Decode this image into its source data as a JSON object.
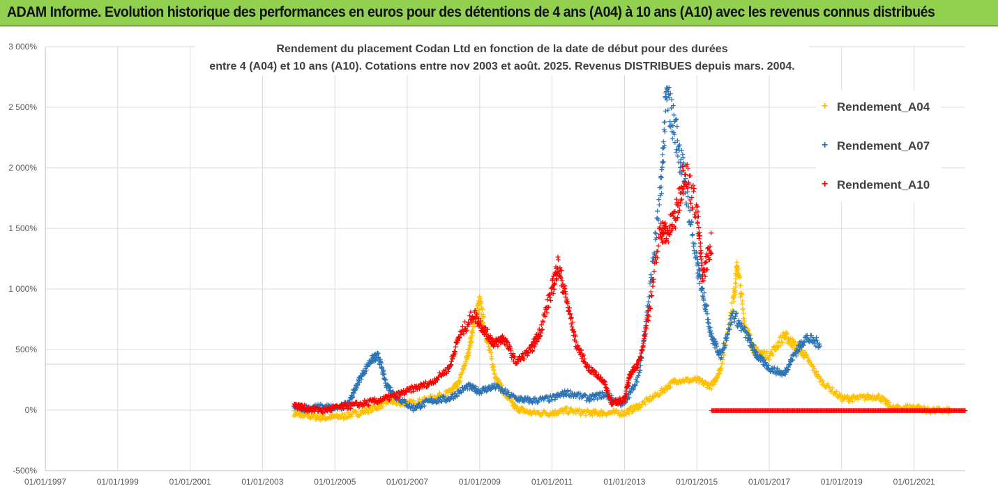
{
  "banner": {
    "title": "ADAM Informe. Evolution historique des performances en euros pour des détentions de 4 ans (A04) à 10 ans (A10) avec les revenus connus distribués"
  },
  "colors": {
    "banner_bg": "#92d050",
    "A04": "#ffc000",
    "A07": "#2e75b6",
    "A10": "#ff0000",
    "grid": "#d9d9d9"
  },
  "chart_data": {
    "type": "scatter",
    "title_line1": "Rendement du placement Codan Ltd en fonction de la date de début pour des durées",
    "title_line2": "entre 4 (A04) et 10 ans (A10). Cotations entre nov 2003 et août. 2025. Revenus DISTRIBUES depuis mars. 2004.",
    "xlabel": "",
    "ylabel": "",
    "x_range": [
      "1997-01-01",
      "2022-06-01"
    ],
    "ylim": [
      -500,
      3000
    ],
    "y_ticks": [
      -500,
      0,
      500,
      1000,
      1500,
      2000,
      2500,
      3000
    ],
    "y_tick_labels": [
      "-500%",
      "0%",
      "500%",
      "1 000%",
      "1 500%",
      "2 000%",
      "2 500%",
      "3 000%"
    ],
    "x_ticks": [
      "1997-01-01",
      "1999-01-01",
      "2001-01-01",
      "2003-01-01",
      "2005-01-01",
      "2007-01-01",
      "2009-01-01",
      "2011-01-01",
      "2013-01-01",
      "2015-01-01",
      "2017-01-01",
      "2019-01-01",
      "2021-01-01"
    ],
    "x_tick_labels": [
      "01/01/1997",
      "01/01/1999",
      "01/01/2001",
      "01/01/2003",
      "01/01/2005",
      "01/01/2007",
      "01/01/2009",
      "01/01/2011",
      "01/01/2013",
      "01/01/2015",
      "01/01/2017",
      "01/01/2019",
      "01/01/2021"
    ],
    "legend_position": "right",
    "grid": true,
    "series": [
      {
        "name": "Rendement_A04",
        "color": "#ffc000",
        "points": [
          [
            "2003-11-15",
            -20
          ],
          [
            "2004-03-01",
            -40
          ],
          [
            "2004-09-01",
            -60
          ],
          [
            "2005-03-01",
            -50
          ],
          [
            "2005-09-01",
            -20
          ],
          [
            "2006-03-01",
            30
          ],
          [
            "2006-07-01",
            80
          ],
          [
            "2006-11-01",
            60
          ],
          [
            "2007-03-01",
            60
          ],
          [
            "2007-09-01",
            100
          ],
          [
            "2008-03-01",
            150
          ],
          [
            "2008-06-01",
            220
          ],
          [
            "2008-09-01",
            450
          ],
          [
            "2008-11-01",
            700
          ],
          [
            "2009-01-01",
            900
          ],
          [
            "2009-03-01",
            650
          ],
          [
            "2009-06-01",
            300
          ],
          [
            "2009-09-01",
            150
          ],
          [
            "2010-01-01",
            20
          ],
          [
            "2010-06-01",
            -20
          ],
          [
            "2011-01-01",
            -20
          ],
          [
            "2011-06-01",
            0
          ],
          [
            "2012-01-01",
            -20
          ],
          [
            "2012-06-01",
            -20
          ],
          [
            "2013-01-01",
            -20
          ],
          [
            "2013-06-01",
            40
          ],
          [
            "2014-01-01",
            150
          ],
          [
            "2014-06-01",
            250
          ],
          [
            "2015-01-01",
            250
          ],
          [
            "2015-06-01",
            200
          ],
          [
            "2015-09-01",
            350
          ],
          [
            "2016-01-01",
            900
          ],
          [
            "2016-02-15",
            1200
          ],
          [
            "2016-05-01",
            700
          ],
          [
            "2016-08-01",
            500
          ],
          [
            "2017-01-01",
            450
          ],
          [
            "2017-06-01",
            620
          ],
          [
            "2017-09-01",
            550
          ],
          [
            "2018-01-01",
            450
          ],
          [
            "2018-06-01",
            250
          ],
          [
            "2019-01-01",
            100
          ],
          [
            "2019-06-01",
            100
          ],
          [
            "2020-01-01",
            120
          ],
          [
            "2020-06-01",
            20
          ],
          [
            "2021-01-01",
            30
          ],
          [
            "2021-06-01",
            0
          ],
          [
            "2022-01-01",
            0
          ]
        ]
      },
      {
        "name": "Rendement_A07",
        "color": "#2e75b6",
        "points": [
          [
            "2003-11-15",
            30
          ],
          [
            "2004-03-01",
            20
          ],
          [
            "2004-09-01",
            30
          ],
          [
            "2005-03-01",
            20
          ],
          [
            "2005-06-01",
            80
          ],
          [
            "2005-09-01",
            250
          ],
          [
            "2006-01-01",
            420
          ],
          [
            "2006-03-15",
            450
          ],
          [
            "2006-06-01",
            220
          ],
          [
            "2006-09-01",
            120
          ],
          [
            "2007-03-01",
            20
          ],
          [
            "2007-09-01",
            80
          ],
          [
            "2008-03-01",
            100
          ],
          [
            "2008-09-01",
            200
          ],
          [
            "2009-01-01",
            160
          ],
          [
            "2009-06-01",
            200
          ],
          [
            "2010-01-01",
            100
          ],
          [
            "2010-06-01",
            80
          ],
          [
            "2011-01-01",
            100
          ],
          [
            "2011-06-01",
            150
          ],
          [
            "2012-01-01",
            100
          ],
          [
            "2012-06-01",
            130
          ],
          [
            "2013-01-01",
            50
          ],
          [
            "2013-06-01",
            300
          ],
          [
            "2013-09-01",
            900
          ],
          [
            "2014-01-01",
            1800
          ],
          [
            "2014-03-01",
            2600
          ],
          [
            "2014-06-01",
            2300
          ],
          [
            "2014-09-01",
            1900
          ],
          [
            "2015-01-01",
            1200
          ],
          [
            "2015-03-01",
            1000
          ],
          [
            "2015-06-01",
            600
          ],
          [
            "2015-09-01",
            450
          ],
          [
            "2016-01-01",
            800
          ],
          [
            "2016-06-01",
            600
          ],
          [
            "2016-09-01",
            450
          ],
          [
            "2017-01-01",
            350
          ],
          [
            "2017-06-01",
            300
          ],
          [
            "2017-09-01",
            450
          ],
          [
            "2018-01-01",
            600
          ],
          [
            "2018-06-01",
            550
          ]
        ]
      },
      {
        "name": "Rendement_A10",
        "color": "#ff0000",
        "points": [
          [
            "2003-11-15",
            50
          ],
          [
            "2004-03-01",
            20
          ],
          [
            "2004-09-01",
            0
          ],
          [
            "2005-03-01",
            30
          ],
          [
            "2005-09-01",
            50
          ],
          [
            "2006-03-01",
            80
          ],
          [
            "2006-09-01",
            120
          ],
          [
            "2007-03-01",
            180
          ],
          [
            "2007-09-01",
            230
          ],
          [
            "2008-03-01",
            350
          ],
          [
            "2008-06-01",
            600
          ],
          [
            "2008-11-01",
            800
          ],
          [
            "2009-03-01",
            650
          ],
          [
            "2009-06-01",
            550
          ],
          [
            "2009-09-01",
            600
          ],
          [
            "2010-01-01",
            400
          ],
          [
            "2010-06-01",
            500
          ],
          [
            "2010-09-01",
            650
          ],
          [
            "2011-01-01",
            1000
          ],
          [
            "2011-03-01",
            1200
          ],
          [
            "2011-06-01",
            900
          ],
          [
            "2011-09-01",
            550
          ],
          [
            "2012-01-01",
            350
          ],
          [
            "2012-06-01",
            250
          ],
          [
            "2012-09-01",
            50
          ],
          [
            "2013-01-01",
            100
          ],
          [
            "2013-03-01",
            300
          ],
          [
            "2013-06-01",
            400
          ],
          [
            "2013-09-01",
            800
          ],
          [
            "2014-01-01",
            1500
          ],
          [
            "2014-03-01",
            1450
          ],
          [
            "2014-06-01",
            1600
          ],
          [
            "2014-09-01",
            2000
          ],
          [
            "2015-01-01",
            1650
          ],
          [
            "2015-03-01",
            1100
          ],
          [
            "2015-06-01",
            1400
          ]
        ],
        "flat_segment": {
          "from": "2015-06-01",
          "to": "2022-06-01",
          "value": 0
        }
      }
    ]
  }
}
